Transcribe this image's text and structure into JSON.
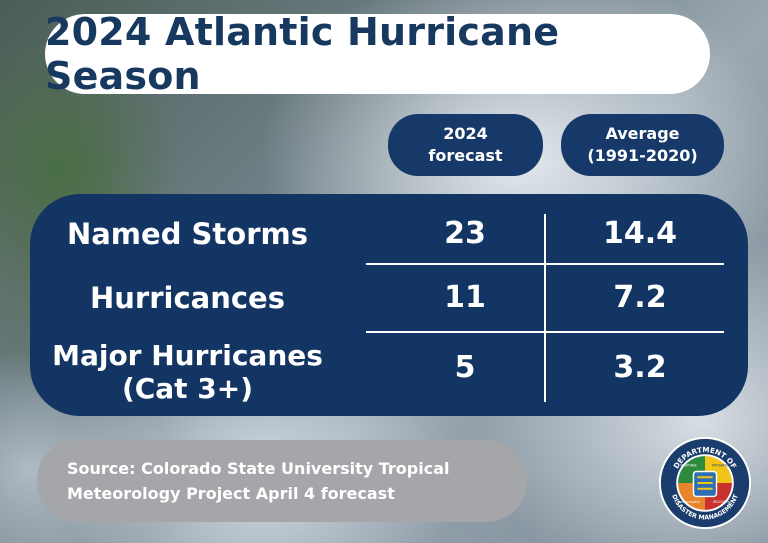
{
  "title": "2024 Atlantic Hurricane Season",
  "columns": [
    "2024\nforecast",
    "Average\n(1991-2020)"
  ],
  "rows": [
    {
      "label": "Named Storms",
      "forecast": "23",
      "average": "14.4"
    },
    {
      "label": "Hurricances",
      "forecast": "11",
      "average": "7.2"
    },
    {
      "label": "Major Hurricanes\n(Cat 3+)",
      "forecast": "5",
      "average": "3.2"
    }
  ],
  "source": "Source: Colorado State University Tropical Meteorology Project April 4 forecast",
  "seal": {
    "top_text": "DEPARTMENT OF",
    "bottom_text": "DISASTER MANAGEMENT",
    "quadrant_words": [
      "RESPONSE",
      "MITIGATION",
      "PREPAREDNESS",
      "RECOVERY"
    ],
    "colors": {
      "ring": "#1b3d6d",
      "green": "#2e8b3e",
      "yellow": "#f0c419",
      "orange": "#e8852a",
      "red": "#c9322c"
    }
  },
  "colors": {
    "navy": "#133563",
    "title_text": "#17395f",
    "source_bg": "#a4a6aa"
  }
}
